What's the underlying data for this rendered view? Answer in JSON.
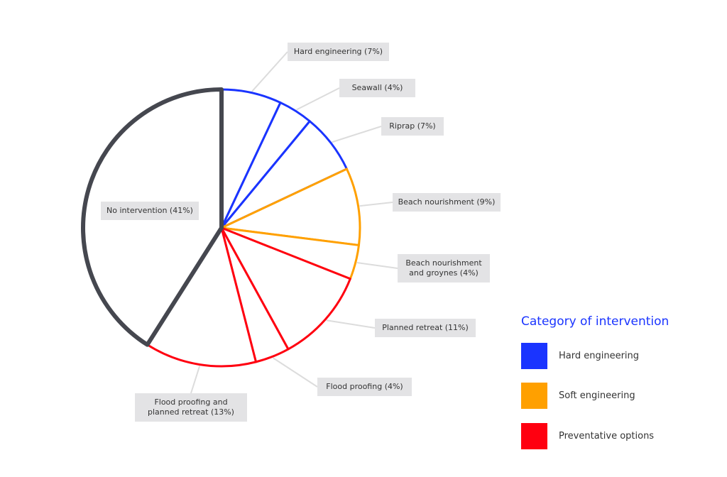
{
  "chart_data": {
    "type": "pie",
    "start": "top, clockwise",
    "slices": [
      {
        "label": "Hard engineering (7%)",
        "value": 7,
        "category": "Hard engineering"
      },
      {
        "label": "Seawall (4%)",
        "value": 4,
        "category": "Hard engineering"
      },
      {
        "label": "Riprap (7%)",
        "value": 7,
        "category": "Hard engineering"
      },
      {
        "label": "Beach nourishment (9%)",
        "value": 9,
        "category": "Soft engineering"
      },
      {
        "label": "Beach nourishment\nand groynes (4%)",
        "value": 4,
        "category": "Soft engineering"
      },
      {
        "label": "Planned retreat (11%)",
        "value": 11,
        "category": "Preventative options"
      },
      {
        "label": "Flood proofing (4%)",
        "value": 4,
        "category": "Preventative options"
      },
      {
        "label": "Flood proofing and\nplanned retreat (13%)",
        "value": 13,
        "category": "Preventative options"
      },
      {
        "label": "No intervention  (41%)",
        "value": 41,
        "category": "none"
      }
    ],
    "legend": {
      "title": "Category of intervention",
      "placement": "bottom-right",
      "items": [
        {
          "label": "Hard engineering",
          "color": "#1a34ff"
        },
        {
          "label": "Soft engineering",
          "color": "#ffa000"
        },
        {
          "label": "Preventative options",
          "color": "#ff0010"
        }
      ]
    },
    "colors": {
      "Hard engineering": "#1a34ff",
      "Soft engineering": "#ffa000",
      "Preventative options": "#ff0010",
      "none": "#45474f"
    },
    "fill": "#ffffff"
  }
}
